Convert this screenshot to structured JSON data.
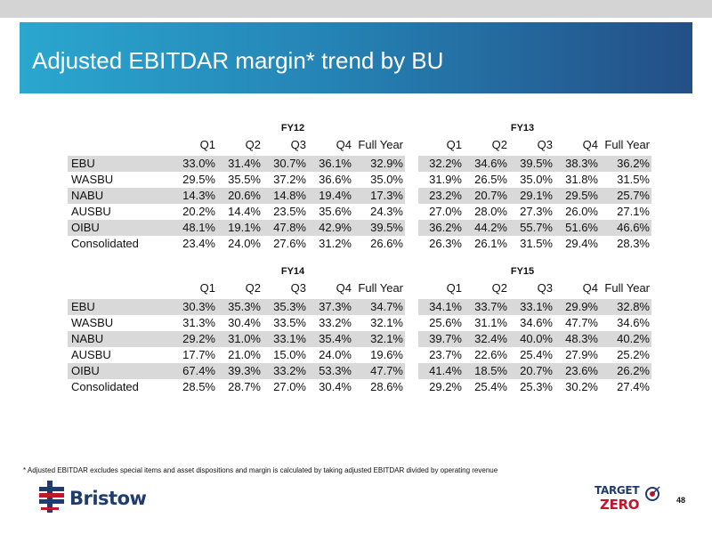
{
  "slide": {
    "title": "Adjusted EBITDAR margin* trend by BU",
    "footnote": "* Adjusted EBITDAR excludes special items and asset dispositions and margin is calculated by taking adjusted EBITDAR divided by operating revenue",
    "page_number": "48"
  },
  "branding": {
    "company": "Bristow",
    "target_line1": "TARGET",
    "target_line2": "ZERO",
    "colors": {
      "navy": "#1f3c6e",
      "red": "#c0182b"
    }
  },
  "columns": [
    "Q1",
    "Q2",
    "Q3",
    "Q4",
    "Full Year"
  ],
  "tables": [
    {
      "left": {
        "year": "FY12",
        "rows": [
          [
            "33.0%",
            "31.4%",
            "30.7%",
            "36.1%",
            "32.9%"
          ],
          [
            "29.5%",
            "35.5%",
            "37.2%",
            "36.6%",
            "35.0%"
          ],
          [
            "14.3%",
            "20.6%",
            "14.8%",
            "19.4%",
            "17.3%"
          ],
          [
            "20.2%",
            "14.4%",
            "23.5%",
            "35.6%",
            "24.3%"
          ],
          [
            "48.1%",
            "19.1%",
            "47.8%",
            "42.9%",
            "39.5%"
          ],
          [
            "23.4%",
            "24.0%",
            "27.6%",
            "31.2%",
            "26.6%"
          ]
        ]
      },
      "right": {
        "year": "FY13",
        "rows": [
          [
            "32.2%",
            "34.6%",
            "39.5%",
            "38.3%",
            "36.2%"
          ],
          [
            "31.9%",
            "26.5%",
            "35.0%",
            "31.8%",
            "31.5%"
          ],
          [
            "23.2%",
            "20.7%",
            "29.1%",
            "29.5%",
            "25.7%"
          ],
          [
            "27.0%",
            "28.0%",
            "27.3%",
            "26.0%",
            "27.1%"
          ],
          [
            "36.2%",
            "44.2%",
            "55.7%",
            "51.6%",
            "46.6%"
          ],
          [
            "26.3%",
            "26.1%",
            "31.5%",
            "29.4%",
            "28.3%"
          ]
        ]
      },
      "labels": [
        "EBU",
        "WASBU",
        "NABU",
        "AUSBU",
        "OIBU",
        "Consolidated"
      ]
    },
    {
      "left": {
        "year": "FY14",
        "rows": [
          [
            "30.3%",
            "35.3%",
            "35.3%",
            "37.3%",
            "34.7%"
          ],
          [
            "31.3%",
            "30.4%",
            "33.5%",
            "33.2%",
            "32.1%"
          ],
          [
            "29.2%",
            "31.0%",
            "33.1%",
            "35.4%",
            "32.1%"
          ],
          [
            "17.7%",
            "21.0%",
            "15.0%",
            "24.0%",
            "19.6%"
          ],
          [
            "67.4%",
            "39.3%",
            "33.2%",
            "53.3%",
            "47.7%"
          ],
          [
            "28.5%",
            "28.7%",
            "27.0%",
            "30.4%",
            "28.6%"
          ]
        ]
      },
      "right": {
        "year": "FY15",
        "rows": [
          [
            "34.1%",
            "33.7%",
            "33.1%",
            "29.9%",
            "32.8%"
          ],
          [
            "25.6%",
            "31.1%",
            "34.6%",
            "47.7%",
            "34.6%"
          ],
          [
            "39.7%",
            "32.4%",
            "40.0%",
            "48.3%",
            "40.2%"
          ],
          [
            "23.7%",
            "22.6%",
            "25.4%",
            "27.9%",
            "25.2%"
          ],
          [
            "41.4%",
            "18.5%",
            "20.7%",
            "23.6%",
            "26.2%"
          ],
          [
            "29.2%",
            "25.4%",
            "25.3%",
            "30.2%",
            "27.4%"
          ]
        ]
      },
      "labels": [
        "EBU",
        "WASBU",
        "NABU",
        "AUSBU",
        "OIBU",
        "Consolidated"
      ]
    }
  ]
}
